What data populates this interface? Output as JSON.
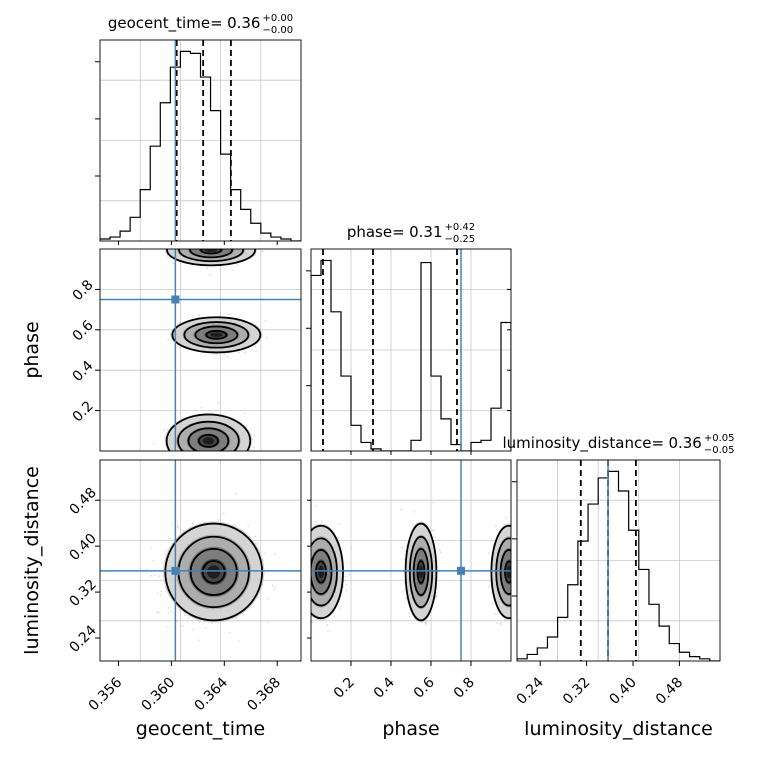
{
  "chart_data": {
    "type": "corner",
    "parameters": [
      "geocent_time",
      "phase",
      "luminosity_distance"
    ],
    "truths": {
      "geocent_time": 0.3603,
      "phase": 0.75,
      "luminosity_distance": 0.357
    },
    "truth_color": "#4682b4",
    "grid": true,
    "panels": [
      {
        "id": "geocent_time",
        "type": "histogram",
        "title": {
          "label": "geocent_time",
          "median": "0.36",
          "plus": "+0.00",
          "minus": "−0.00"
        },
        "xlim": [
          0.3546,
          0.3698
        ],
        "bin_edges": [
          0.3546,
          0.35536,
          0.35612,
          0.35688,
          0.35764,
          0.3584,
          0.35916,
          0.35992,
          0.36068,
          0.36144,
          0.3622,
          0.36296,
          0.36372,
          0.36448,
          0.36524,
          0.366,
          0.36676,
          0.36752,
          0.36828,
          0.36904,
          0.3698
        ],
        "counts": [
          1,
          2,
          5,
          12,
          26,
          48,
          70,
          88,
          96,
          95,
          83,
          66,
          44,
          26,
          16,
          9,
          4,
          2,
          1,
          0
        ],
        "quantiles": [
          0.3604,
          0.3624,
          0.3645
        ]
      },
      {
        "id": "phase-vs-geocent_time",
        "type": "2d-density",
        "x": "geocent_time",
        "y": "phase",
        "xlim": [
          0.3546,
          0.3698
        ],
        "ylim": [
          0.0,
          1.0
        ],
        "modes": [
          {
            "x": 0.3634,
            "y": 0.575
          },
          {
            "x": 0.3628,
            "y": 0.05
          },
          {
            "x": 0.363,
            "y": 0.995
          }
        ]
      },
      {
        "id": "phase",
        "type": "histogram",
        "title": {
          "label": "phase",
          "median": "0.31",
          "plus": "+0.42",
          "minus": "−0.25"
        },
        "xlim": [
          0.0,
          1.0
        ],
        "bin_edges": [
          0.0,
          0.05,
          0.1,
          0.15,
          0.2,
          0.25,
          0.3,
          0.35,
          0.4,
          0.45,
          0.5,
          0.55,
          0.6,
          0.65,
          0.7,
          0.75,
          0.8,
          0.85,
          0.9,
          0.95,
          1.0
        ],
        "counts": [
          82,
          89,
          65,
          35,
          12,
          4,
          1,
          0,
          0,
          0,
          5,
          88,
          35,
          15,
          3,
          0,
          4,
          5,
          20,
          60
        ],
        "quantiles": [
          0.06,
          0.31,
          0.73
        ]
      },
      {
        "id": "luminosity_distance-vs-geocent_time",
        "type": "2d-density",
        "x": "geocent_time",
        "y": "luminosity_distance",
        "xlim": [
          0.3546,
          0.3698
        ],
        "ylim": [
          0.2,
          0.55
        ],
        "modes": [
          {
            "x": 0.3632,
            "y": 0.355
          }
        ]
      },
      {
        "id": "luminosity_distance-vs-phase",
        "type": "2d-density",
        "x": "phase",
        "y": "luminosity_distance",
        "xlim": [
          0.0,
          1.0
        ],
        "ylim": [
          0.2,
          0.55
        ],
        "modes": [
          {
            "x": 0.05,
            "y": 0.355
          },
          {
            "x": 0.55,
            "y": 0.355
          },
          {
            "x": 0.99,
            "y": 0.355
          }
        ]
      },
      {
        "id": "luminosity_distance",
        "type": "histogram",
        "title": {
          "label": "luminosity_distance",
          "median": "0.36",
          "plus": "+0.05",
          "minus": "−0.05"
        },
        "xlim": [
          0.2,
          0.55
        ],
        "bin_edges": [
          0.2,
          0.2175,
          0.235,
          0.2525,
          0.27,
          0.2875,
          0.305,
          0.3225,
          0.34,
          0.3575,
          0.375,
          0.3925,
          0.41,
          0.4275,
          0.445,
          0.4625,
          0.48,
          0.4975,
          0.515,
          0.5325,
          0.55
        ],
        "counts": [
          1,
          3,
          6,
          11,
          20,
          35,
          55,
          72,
          84,
          87,
          78,
          60,
          42,
          26,
          16,
          8,
          4,
          2,
          1,
          0
        ],
        "quantiles": [
          0.31,
          0.357,
          0.405
        ]
      }
    ],
    "ticks": {
      "geocent_time": [
        "0.356",
        "0.360",
        "0.364",
        "0.368"
      ],
      "phase": [
        "0.2",
        "0.4",
        "0.6",
        "0.8"
      ],
      "luminosity_distance": [
        "0.24",
        "0.32",
        "0.40",
        "0.48"
      ]
    },
    "tick_values": {
      "geocent_time": [
        0.356,
        0.36,
        0.364,
        0.368
      ],
      "phase": [
        0.2,
        0.4,
        0.6,
        0.8
      ],
      "luminosity_distance": [
        0.24,
        0.32,
        0.4,
        0.48
      ]
    },
    "axis_labels": {
      "x": [
        "geocent_time",
        "phase",
        "luminosity_distance"
      ],
      "y": [
        "phase",
        "luminosity_distance"
      ]
    }
  }
}
